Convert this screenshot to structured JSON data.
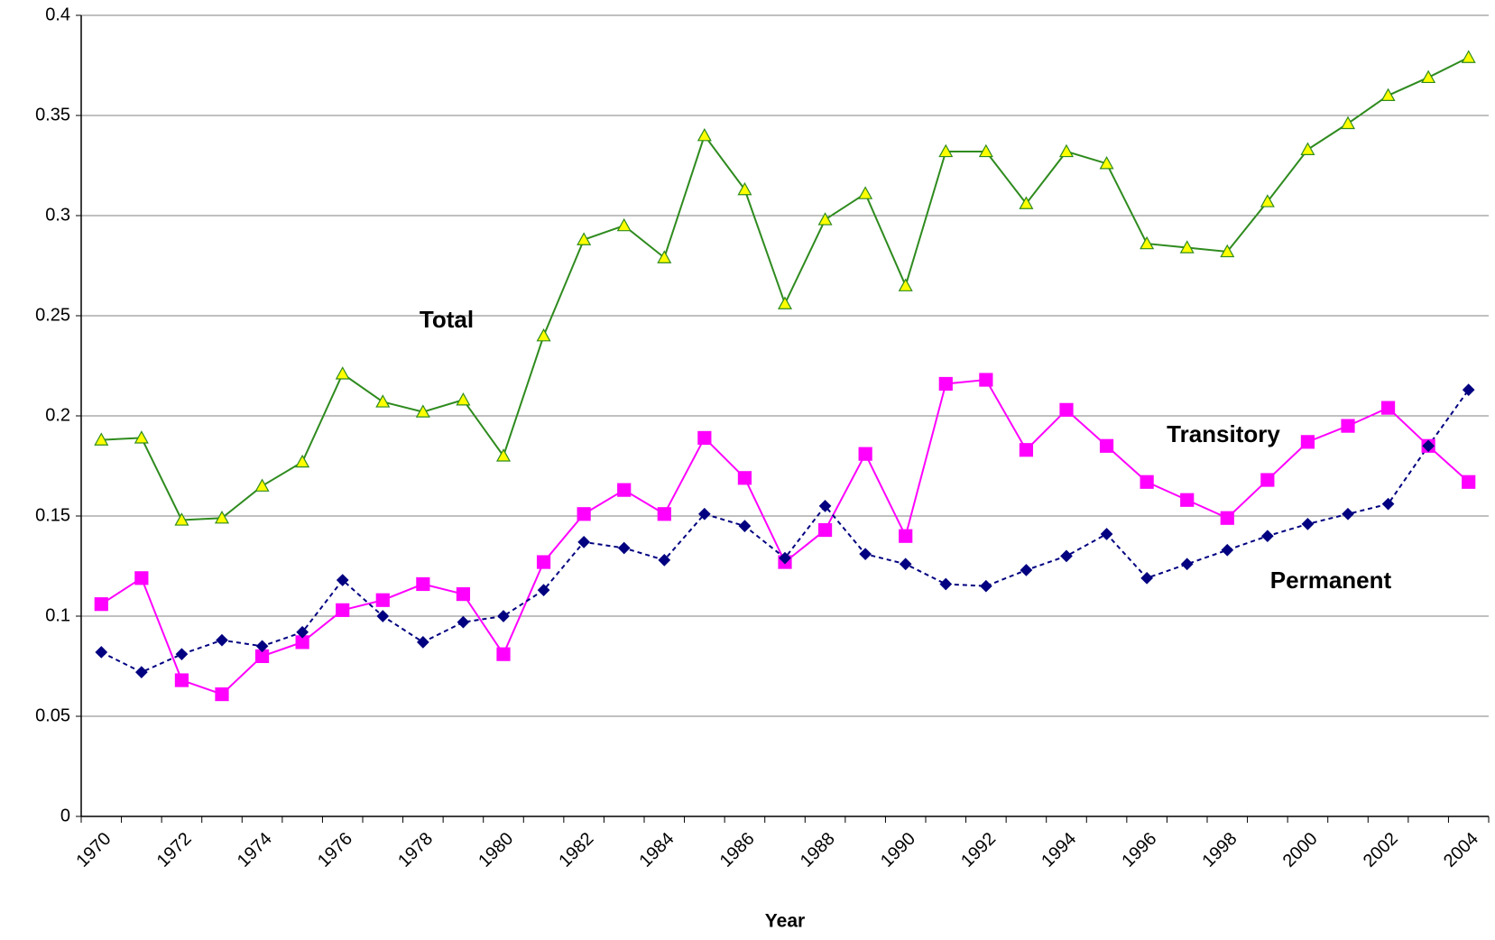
{
  "chart_data": {
    "type": "line",
    "x_label": "Year",
    "categories": [
      "1970",
      null,
      "1972",
      null,
      "1974",
      null,
      "1976",
      null,
      "1978",
      null,
      "1980",
      null,
      "1982",
      null,
      "1984",
      null,
      "1986",
      null,
      "1988",
      null,
      "1990",
      null,
      "1992",
      null,
      "1994",
      null,
      "1996",
      null,
      "1998",
      null,
      "2000",
      null,
      "2002",
      null,
      "2004"
    ],
    "ylim": [
      0,
      0.4
    ],
    "yticks": [
      0,
      0.05,
      0.1,
      0.15,
      0.2,
      0.25,
      0.3,
      0.35,
      0.4
    ],
    "grid": true,
    "series": [
      {
        "name": "Total",
        "color": "#2e8b1e",
        "marker": "triangle",
        "marker_color": "#ffff00",
        "dash": false,
        "values": [
          0.188,
          0.189,
          0.148,
          0.149,
          0.165,
          0.177,
          0.221,
          0.207,
          0.202,
          0.208,
          0.18,
          0.24,
          0.288,
          0.295,
          0.279,
          0.34,
          0.313,
          0.256,
          0.298,
          0.311,
          0.265,
          0.332,
          0.332,
          0.306,
          0.332,
          0.326,
          0.286,
          0.284,
          0.282,
          0.307,
          0.333,
          0.346,
          0.36,
          0.369,
          0.379
        ]
      },
      {
        "name": "Transitory",
        "color": "#ff00ff",
        "marker": "square",
        "marker_color": "#ff00ff",
        "dash": false,
        "values": [
          0.106,
          0.119,
          0.068,
          0.061,
          0.08,
          0.087,
          0.103,
          0.108,
          0.116,
          0.111,
          0.081,
          0.127,
          0.151,
          0.163,
          0.151,
          0.189,
          0.169,
          0.127,
          0.143,
          0.181,
          0.14,
          0.216,
          0.218,
          0.183,
          0.203,
          0.185,
          0.167,
          0.158,
          0.149,
          0.168,
          0.187,
          0.195,
          0.204,
          0.185,
          0.167
        ]
      },
      {
        "name": "Permanent",
        "color": "#000080",
        "marker": "diamond",
        "marker_color": "#000080",
        "dash": true,
        "values": [
          0.082,
          0.072,
          0.081,
          0.088,
          0.085,
          0.092,
          0.118,
          0.1,
          0.087,
          0.097,
          0.1,
          0.113,
          0.137,
          0.134,
          0.128,
          0.151,
          0.145,
          0.129,
          0.155,
          0.131,
          0.126,
          0.116,
          0.115,
          0.123,
          0.13,
          0.141,
          0.119,
          0.126,
          0.133,
          0.14,
          0.146,
          0.151,
          0.156,
          0.185,
          0.213
        ]
      }
    ]
  }
}
